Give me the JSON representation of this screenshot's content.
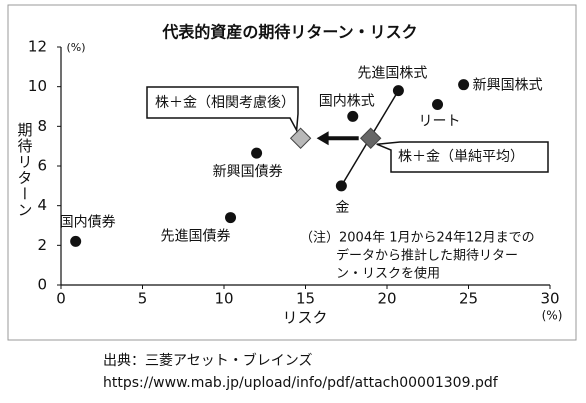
{
  "chart_data": {
    "type": "scatter",
    "title": "代表的資産の期待リターン・リスク",
    "ylabel": "期待リターン",
    "yunit": "(%)",
    "xlabel": "リスク",
    "xunit": "(%)",
    "xlim": [
      0,
      30
    ],
    "xticks": [
      0,
      5,
      10,
      15,
      20,
      25,
      30
    ],
    "ylim": [
      0,
      12
    ],
    "yticks": [
      0,
      2,
      4,
      6,
      8,
      10,
      12
    ],
    "points": {
      "labels": [
        "国内債券",
        "先進国債券",
        "新興国債券",
        "国内株式",
        "先進国株式",
        "新興国株式",
        "リート",
        "金"
      ],
      "x": [
        0.9,
        10.4,
        12.0,
        17.9,
        20.7,
        24.7,
        23.1,
        17.2
      ],
      "y": [
        2.2,
        3.4,
        6.65,
        8.5,
        9.8,
        10.1,
        9.1,
        5.0
      ],
      "color": "#111111"
    },
    "portfolios": {
      "labels": [
        "株＋金（相関考慮後）",
        "株＋金（単純平均）"
      ],
      "x": [
        14.7,
        19.0
      ],
      "y": [
        7.4,
        7.4
      ],
      "colors": [
        "#b8b8b8",
        "#666666"
      ]
    },
    "note": [
      "（注）2004年 1月から24年12月までの",
      "データから推計した期待リター",
      "ン・リスクを使用"
    ]
  },
  "source": [
    "出典：三菱アセット・ブレインズ",
    "https://www.mab.jp/upload/info/pdf/attach00001309.pdf"
  ]
}
